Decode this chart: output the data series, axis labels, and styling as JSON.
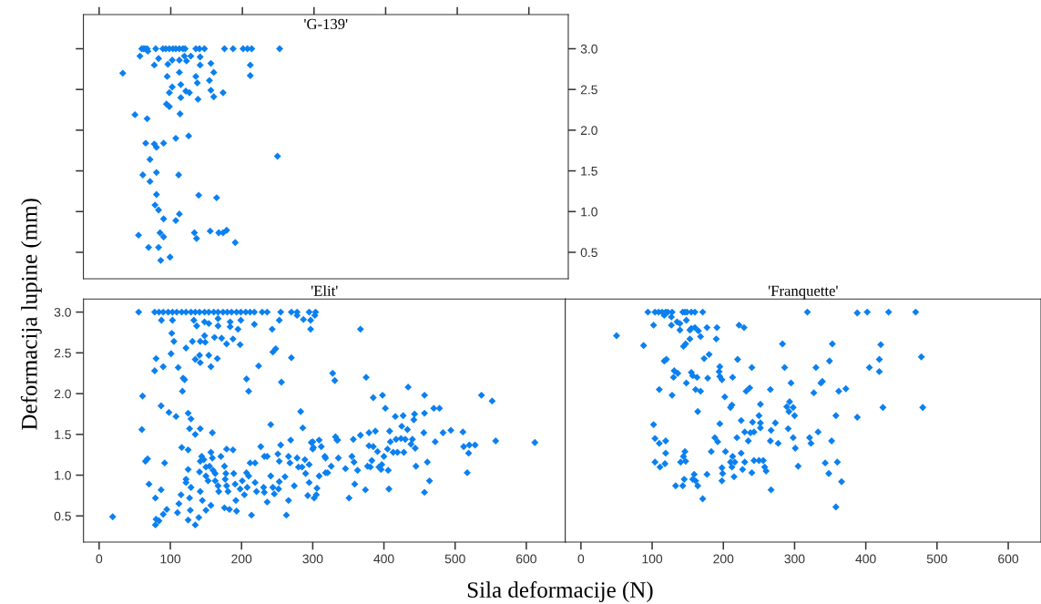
{
  "chart_data": [
    {
      "type": "scatter",
      "title": "'G-139'",
      "color": "#0b80f0",
      "marker": "diamond",
      "xlim": [
        -22,
        655
      ],
      "ylim": [
        0.175,
        3.42
      ],
      "xticks": [
        {
          "value": 0,
          "label": null
        },
        {
          "value": 100,
          "label": null
        },
        {
          "value": 200,
          "label": null
        },
        {
          "value": 300,
          "label": null
        },
        {
          "value": 400,
          "label": null
        },
        {
          "value": 500,
          "label": null
        },
        {
          "value": 600,
          "label": null
        }
      ],
      "yticks": [
        {
          "value": 0.5,
          "label": "0.5"
        },
        {
          "value": 1,
          "label": "1.0"
        },
        {
          "value": 1.5,
          "label": "1.5"
        },
        {
          "value": 2,
          "label": "2.0"
        },
        {
          "value": 2.5,
          "label": "2.5"
        },
        {
          "value": 3,
          "label": "3.0"
        }
      ],
      "tick_labels": "y",
      "x": [
        59.5,
        62,
        64,
        67,
        79,
        89,
        93,
        98,
        103,
        107,
        112,
        117,
        120,
        135,
        140,
        147,
        175,
        187,
        201,
        207,
        213,
        252,
        57,
        68,
        83,
        77,
        96,
        102,
        112,
        119,
        122,
        128,
        141,
        141,
        156,
        211,
        211,
        33,
        95,
        112,
        135,
        137,
        154,
        160,
        102,
        98,
        114,
        121,
        126,
        114,
        138,
        156,
        160,
        173,
        94,
        98,
        113,
        50,
        67,
        125,
        107,
        65,
        77,
        80,
        90,
        249,
        71,
        61,
        80,
        111,
        71,
        80,
        139,
        164,
        78,
        83,
        112,
        90,
        107,
        55,
        85,
        90,
        133,
        136,
        155,
        167,
        173,
        178,
        190,
        69,
        83,
        86,
        99
      ],
      "values": [
        3.0,
        3.0,
        3.0,
        3.0,
        3.0,
        3.0,
        3.0,
        3.0,
        3.0,
        3.0,
        3.0,
        3.0,
        3.0,
        3.0,
        3.0,
        3.0,
        3.0,
        3.0,
        3.0,
        3.0,
        3.0,
        3.0,
        2.91,
        2.97,
        2.88,
        2.8,
        2.81,
        2.86,
        2.86,
        2.91,
        2.85,
        2.91,
        2.9,
        2.8,
        2.82,
        2.8,
        2.67,
        2.7,
        2.66,
        2.71,
        2.66,
        2.58,
        2.61,
        2.71,
        2.53,
        2.46,
        2.56,
        2.48,
        2.46,
        2.4,
        2.38,
        2.49,
        2.41,
        2.46,
        2.32,
        2.29,
        2.2,
        2.19,
        2.14,
        1.93,
        1.9,
        1.84,
        1.83,
        1.79,
        1.84,
        1.68,
        1.64,
        1.45,
        1.48,
        1.45,
        1.37,
        1.21,
        1.2,
        1.17,
        1.08,
        1.02,
        0.97,
        0.91,
        0.89,
        0.71,
        0.74,
        0.69,
        0.74,
        0.67,
        0.76,
        0.74,
        0.74,
        0.77,
        0.62,
        0.56,
        0.56,
        0.4,
        0.44
      ]
    },
    {
      "type": "scatter",
      "title": "'Elit'",
      "xlabel": "Sila deformacije (N)",
      "ylabel": "Deformacija lupine (mm)",
      "color": "#0b80f0",
      "marker": "diamond",
      "xlim": [
        -22,
        655
      ],
      "ylim": [
        0.18,
        3.16
      ],
      "xticks": [
        0,
        100,
        200,
        300,
        400,
        500,
        600
      ],
      "yticks": [
        {
          "value": 0.5,
          "label": "0.5"
        },
        {
          "value": 1,
          "label": "1.0"
        },
        {
          "value": 1.5,
          "label": "1.5"
        },
        {
          "value": 2,
          "label": "2.0"
        },
        {
          "value": 2.5,
          "label": "2.5"
        },
        {
          "value": 3,
          "label": "3.0"
        }
      ],
      "x": [
        55.5,
        78,
        84,
        90,
        97,
        103,
        109,
        116,
        122,
        129,
        135,
        141,
        148,
        154,
        161,
        167,
        174,
        180,
        186,
        193,
        199,
        206,
        212,
        218,
        229,
        236,
        255,
        270,
        278,
        295,
        304,
        87.5,
        103,
        133,
        148,
        167,
        184,
        199,
        218,
        253,
        287,
        297,
        303,
        278,
        137,
        154,
        167,
        184,
        195,
        243,
        297,
        102,
        105,
        131,
        148,
        162,
        172,
        179,
        188,
        198,
        142,
        122,
        149,
        101,
        141,
        154,
        248,
        244,
        270,
        80,
        78,
        90,
        135,
        142,
        157,
        166,
        111,
        224,
        118,
        120,
        117,
        207,
        210,
        256,
        61,
        87,
        98,
        108,
        125,
        129,
        127,
        135,
        142,
        159,
        60,
        241,
        283,
        286,
        65,
        68,
        92,
        70,
        87,
        79,
        79,
        80,
        84,
        19,
        90,
        95,
        110,
        112,
        115,
        116,
        125,
        125,
        122,
        122,
        129,
        127,
        128,
        125,
        135,
        140,
        141,
        142,
        144,
        147,
        150,
        150,
        153,
        142,
        145,
        150,
        157,
        157,
        159,
        155,
        160,
        163,
        163,
        167,
        168,
        171,
        176,
        178,
        179,
        177,
        179,
        181,
        176,
        183,
        188,
        189,
        191,
        192,
        193,
        198,
        201,
        204,
        207,
        208,
        210,
        212,
        219,
        219,
        214,
        221,
        227,
        232,
        236,
        231,
        232,
        236,
        241,
        244,
        246,
        251,
        255,
        253,
        253,
        252,
        261,
        266,
        268,
        269,
        266,
        263,
        274,
        278,
        280,
        285,
        289,
        290,
        295,
        295,
        298,
        300,
        302,
        305,
        293,
        318,
        318,
        312,
        367,
        328,
        331,
        375,
        434,
        385,
        398,
        457,
        402,
        416,
        427,
        443,
        442,
        457,
        470,
        478,
        537,
        552,
        425,
        433,
        408,
        456,
        483,
        494,
        511,
        379,
        388,
        367,
        357,
        332,
        335,
        309,
        300,
        409,
        417,
        424,
        430,
        440,
        472,
        557,
        612,
        512,
        520,
        528,
        519,
        517,
        464,
        461,
        457,
        445,
        444,
        438,
        428,
        419,
        413,
        405,
        400,
        391,
        385,
        379,
        397,
        396,
        406,
        407,
        393,
        383,
        377,
        381,
        374,
        359,
        351,
        363,
        358,
        355,
        346,
        336,
        334,
        326,
        321,
        317,
        309,
        306,
        301
      ],
      "values": [
        3.0,
        3.0,
        3.0,
        3.0,
        3.0,
        3.0,
        3.0,
        3.0,
        3.0,
        3.0,
        3.0,
        3.0,
        3.0,
        3.0,
        3.0,
        3.0,
        3.0,
        3.0,
        3.0,
        3.0,
        3.0,
        3.0,
        3.0,
        3.0,
        3.0,
        3.0,
        3.0,
        3.0,
        3.0,
        3.0,
        3.0,
        2.9,
        2.9,
        2.9,
        2.88,
        2.92,
        2.88,
        2.9,
        2.85,
        2.9,
        2.91,
        2.9,
        2.96,
        2.96,
        2.83,
        2.86,
        2.83,
        2.82,
        2.79,
        2.79,
        2.79,
        2.74,
        2.64,
        2.64,
        2.71,
        2.69,
        2.68,
        2.61,
        2.67,
        2.6,
        2.64,
        2.56,
        2.63,
        2.49,
        2.47,
        2.47,
        2.55,
        2.51,
        2.44,
        2.43,
        2.28,
        2.33,
        2.42,
        2.38,
        2.33,
        2.43,
        2.32,
        2.34,
        2.19,
        2.17,
        2.03,
        2.18,
        2.03,
        2.14,
        1.97,
        1.85,
        1.77,
        1.72,
        1.76,
        1.69,
        1.57,
        1.5,
        1.57,
        1.52,
        1.56,
        1.62,
        1.78,
        1.58,
        1.17,
        1.2,
        1.15,
        0.89,
        0.82,
        0.72,
        0.39,
        0.46,
        0.44,
        0.49,
        0.52,
        0.58,
        0.54,
        0.65,
        0.76,
        1.34,
        1.31,
        1.07,
        0.95,
        0.91,
        0.85,
        0.72,
        0.57,
        0.45,
        0.39,
        0.48,
        1.04,
        1.17,
        1.23,
        1.19,
        1.1,
        0.99,
        0.93,
        0.8,
        0.69,
        0.57,
        0.63,
        1.28,
        1.21,
        1.11,
        1.06,
        1.02,
        0.93,
        0.87,
        0.8,
        1.23,
        1.11,
        1.02,
        1.32,
        0.95,
        0.87,
        0.8,
        0.6,
        0.58,
        1.31,
        1.02,
        0.89,
        0.69,
        0.56,
        0.83,
        0.93,
        0.76,
        1.03,
        0.85,
        0.99,
        1.15,
        1.15,
        0.91,
        0.51,
        0.8,
        1.35,
        1.23,
        1.23,
        0.85,
        0.79,
        0.67,
        0.99,
        0.85,
        0.77,
        1.26,
        1.37,
        1.17,
        0.92,
        0.83,
        0.98,
        1.23,
        1.15,
        1.43,
        0.69,
        0.51,
        0.87,
        1.21,
        1.1,
        1.1,
        1.19,
        1.02,
        1.13,
        0.91,
        1.4,
        1.32,
        0.72,
        0.76,
        0.75,
        1.03,
        1.21,
        1.35,
        2.79,
        2.25,
        2.16,
        2.2,
        2.08,
        1.95,
        1.98,
        1.98,
        1.82,
        1.72,
        1.73,
        1.75,
        1.68,
        1.76,
        1.82,
        1.82,
        1.98,
        1.91,
        1.6,
        1.56,
        1.54,
        1.52,
        1.52,
        1.55,
        1.53,
        1.52,
        1.54,
        1.49,
        1.44,
        1.47,
        1.43,
        1.43,
        1.41,
        1.41,
        1.44,
        1.45,
        1.44,
        1.44,
        1.41,
        1.42,
        1.4,
        1.35,
        1.37,
        1.37,
        1.27,
        1.03,
        0.93,
        1.16,
        0.79,
        1.11,
        1.33,
        1.38,
        1.28,
        1.28,
        1.28,
        1.32,
        1.23,
        1.29,
        1.35,
        1.36,
        1.13,
        1.07,
        1.06,
        0.83,
        1.1,
        1.18,
        1.11,
        1.1,
        0.82,
        0.89,
        0.72,
        1.06,
        1.16,
        1.23,
        1.08,
        1.21,
        1.43,
        1.11,
        1.03,
        1.23,
        0.99,
        0.84,
        1.34
      ]
    },
    {
      "type": "scatter",
      "title": "'Franquette'",
      "color": "#0b80f0",
      "marker": "diamond",
      "xlim": [
        -22,
        646
      ],
      "ylim": [
        0.18,
        3.16
      ],
      "xticks": [
        0,
        100,
        200,
        300,
        400,
        500,
        600
      ],
      "tick_labels": "x",
      "x": [
        94,
        104,
        109,
        114,
        119,
        122,
        128,
        143,
        146,
        149,
        155,
        160,
        171,
        318,
        388,
        402,
        432,
        470,
        117,
        127,
        102,
        127,
        135,
        139,
        148,
        139,
        153,
        155,
        160,
        165,
        168,
        177,
        191,
        222,
        229,
        50,
        88,
        144,
        147,
        153,
        190,
        173,
        180,
        117,
        120,
        220,
        283,
        353,
        421,
        478,
        349,
        419,
        405,
        419,
        286,
        330,
        240,
        195,
        194,
        195,
        198,
        213,
        178,
        163,
        155,
        157,
        131,
        136,
        130,
        148,
        161,
        168,
        110,
        128,
        232,
        237,
        266,
        295,
        339,
        337,
        327,
        362,
        372,
        202,
        210,
        212,
        252,
        289,
        293,
        298,
        292,
        300,
        164,
        424,
        480,
        250,
        252,
        252,
        241,
        225,
        195,
        273,
        358,
        388,
        102,
        230,
        238,
        243,
        267,
        291,
        219,
        235,
        266,
        277,
        298,
        321,
        323,
        333,
        352,
        104,
        110,
        119,
        188,
        192,
        301,
        119,
        146,
        183,
        203,
        225,
        104,
        111,
        118,
        140,
        147,
        144,
        213,
        210,
        216,
        212,
        230,
        243,
        250,
        256,
        258,
        260,
        227,
        240,
        215,
        198,
        199,
        198,
        177,
        159,
        157,
        161,
        164,
        145,
        133,
        143,
        171,
        305,
        343,
        360,
        348,
        366,
        267,
        358
      ],
      "values": [
        3.0,
        3.0,
        3.0,
        3.0,
        3.0,
        3.0,
        3.0,
        3.0,
        3.0,
        3.0,
        3.0,
        3.0,
        3.0,
        3.0,
        2.99,
        3.0,
        3.0,
        3.0,
        2.96,
        2.94,
        2.84,
        2.84,
        2.88,
        2.86,
        2.9,
        2.78,
        2.78,
        2.8,
        2.81,
        2.77,
        2.7,
        2.81,
        2.81,
        2.84,
        2.81,
        2.71,
        2.59,
        2.58,
        2.61,
        2.67,
        2.67,
        2.43,
        2.48,
        2.4,
        2.42,
        2.42,
        2.61,
        2.61,
        2.6,
        2.45,
        2.4,
        2.42,
        2.32,
        2.27,
        2.32,
        2.32,
        2.32,
        2.33,
        2.27,
        2.21,
        2.17,
        2.2,
        2.19,
        2.2,
        2.26,
        2.22,
        2.28,
        2.25,
        2.2,
        2.13,
        2.05,
        2.03,
        2.05,
        1.98,
        2.03,
        2.07,
        2.05,
        2.13,
        2.15,
        2.13,
        2.01,
        2.03,
        2.06,
        1.96,
        1.83,
        1.86,
        1.87,
        1.84,
        1.9,
        1.83,
        1.78,
        1.73,
        1.78,
        1.83,
        1.83,
        1.73,
        1.64,
        1.58,
        1.65,
        1.67,
        1.63,
        1.64,
        1.73,
        1.71,
        1.62,
        1.53,
        1.52,
        1.53,
        1.55,
        1.57,
        1.46,
        1.42,
        1.42,
        1.39,
        1.46,
        1.46,
        1.39,
        1.53,
        1.42,
        1.45,
        1.39,
        1.42,
        1.46,
        1.41,
        1.33,
        1.27,
        1.29,
        1.29,
        1.29,
        1.27,
        1.16,
        1.1,
        1.14,
        1.16,
        1.17,
        1.23,
        1.23,
        1.16,
        1.16,
        1.1,
        1.16,
        1.18,
        1.18,
        1.18,
        1.1,
        1.05,
        1.07,
        1.03,
        0.98,
        1.09,
        1.02,
        0.93,
        1.01,
        1.01,
        0.95,
        0.93,
        0.87,
        0.95,
        0.87,
        0.87,
        0.71,
        1.11,
        1.15,
        1.16,
        1.02,
        0.92,
        0.82,
        0.61
      ]
    }
  ]
}
